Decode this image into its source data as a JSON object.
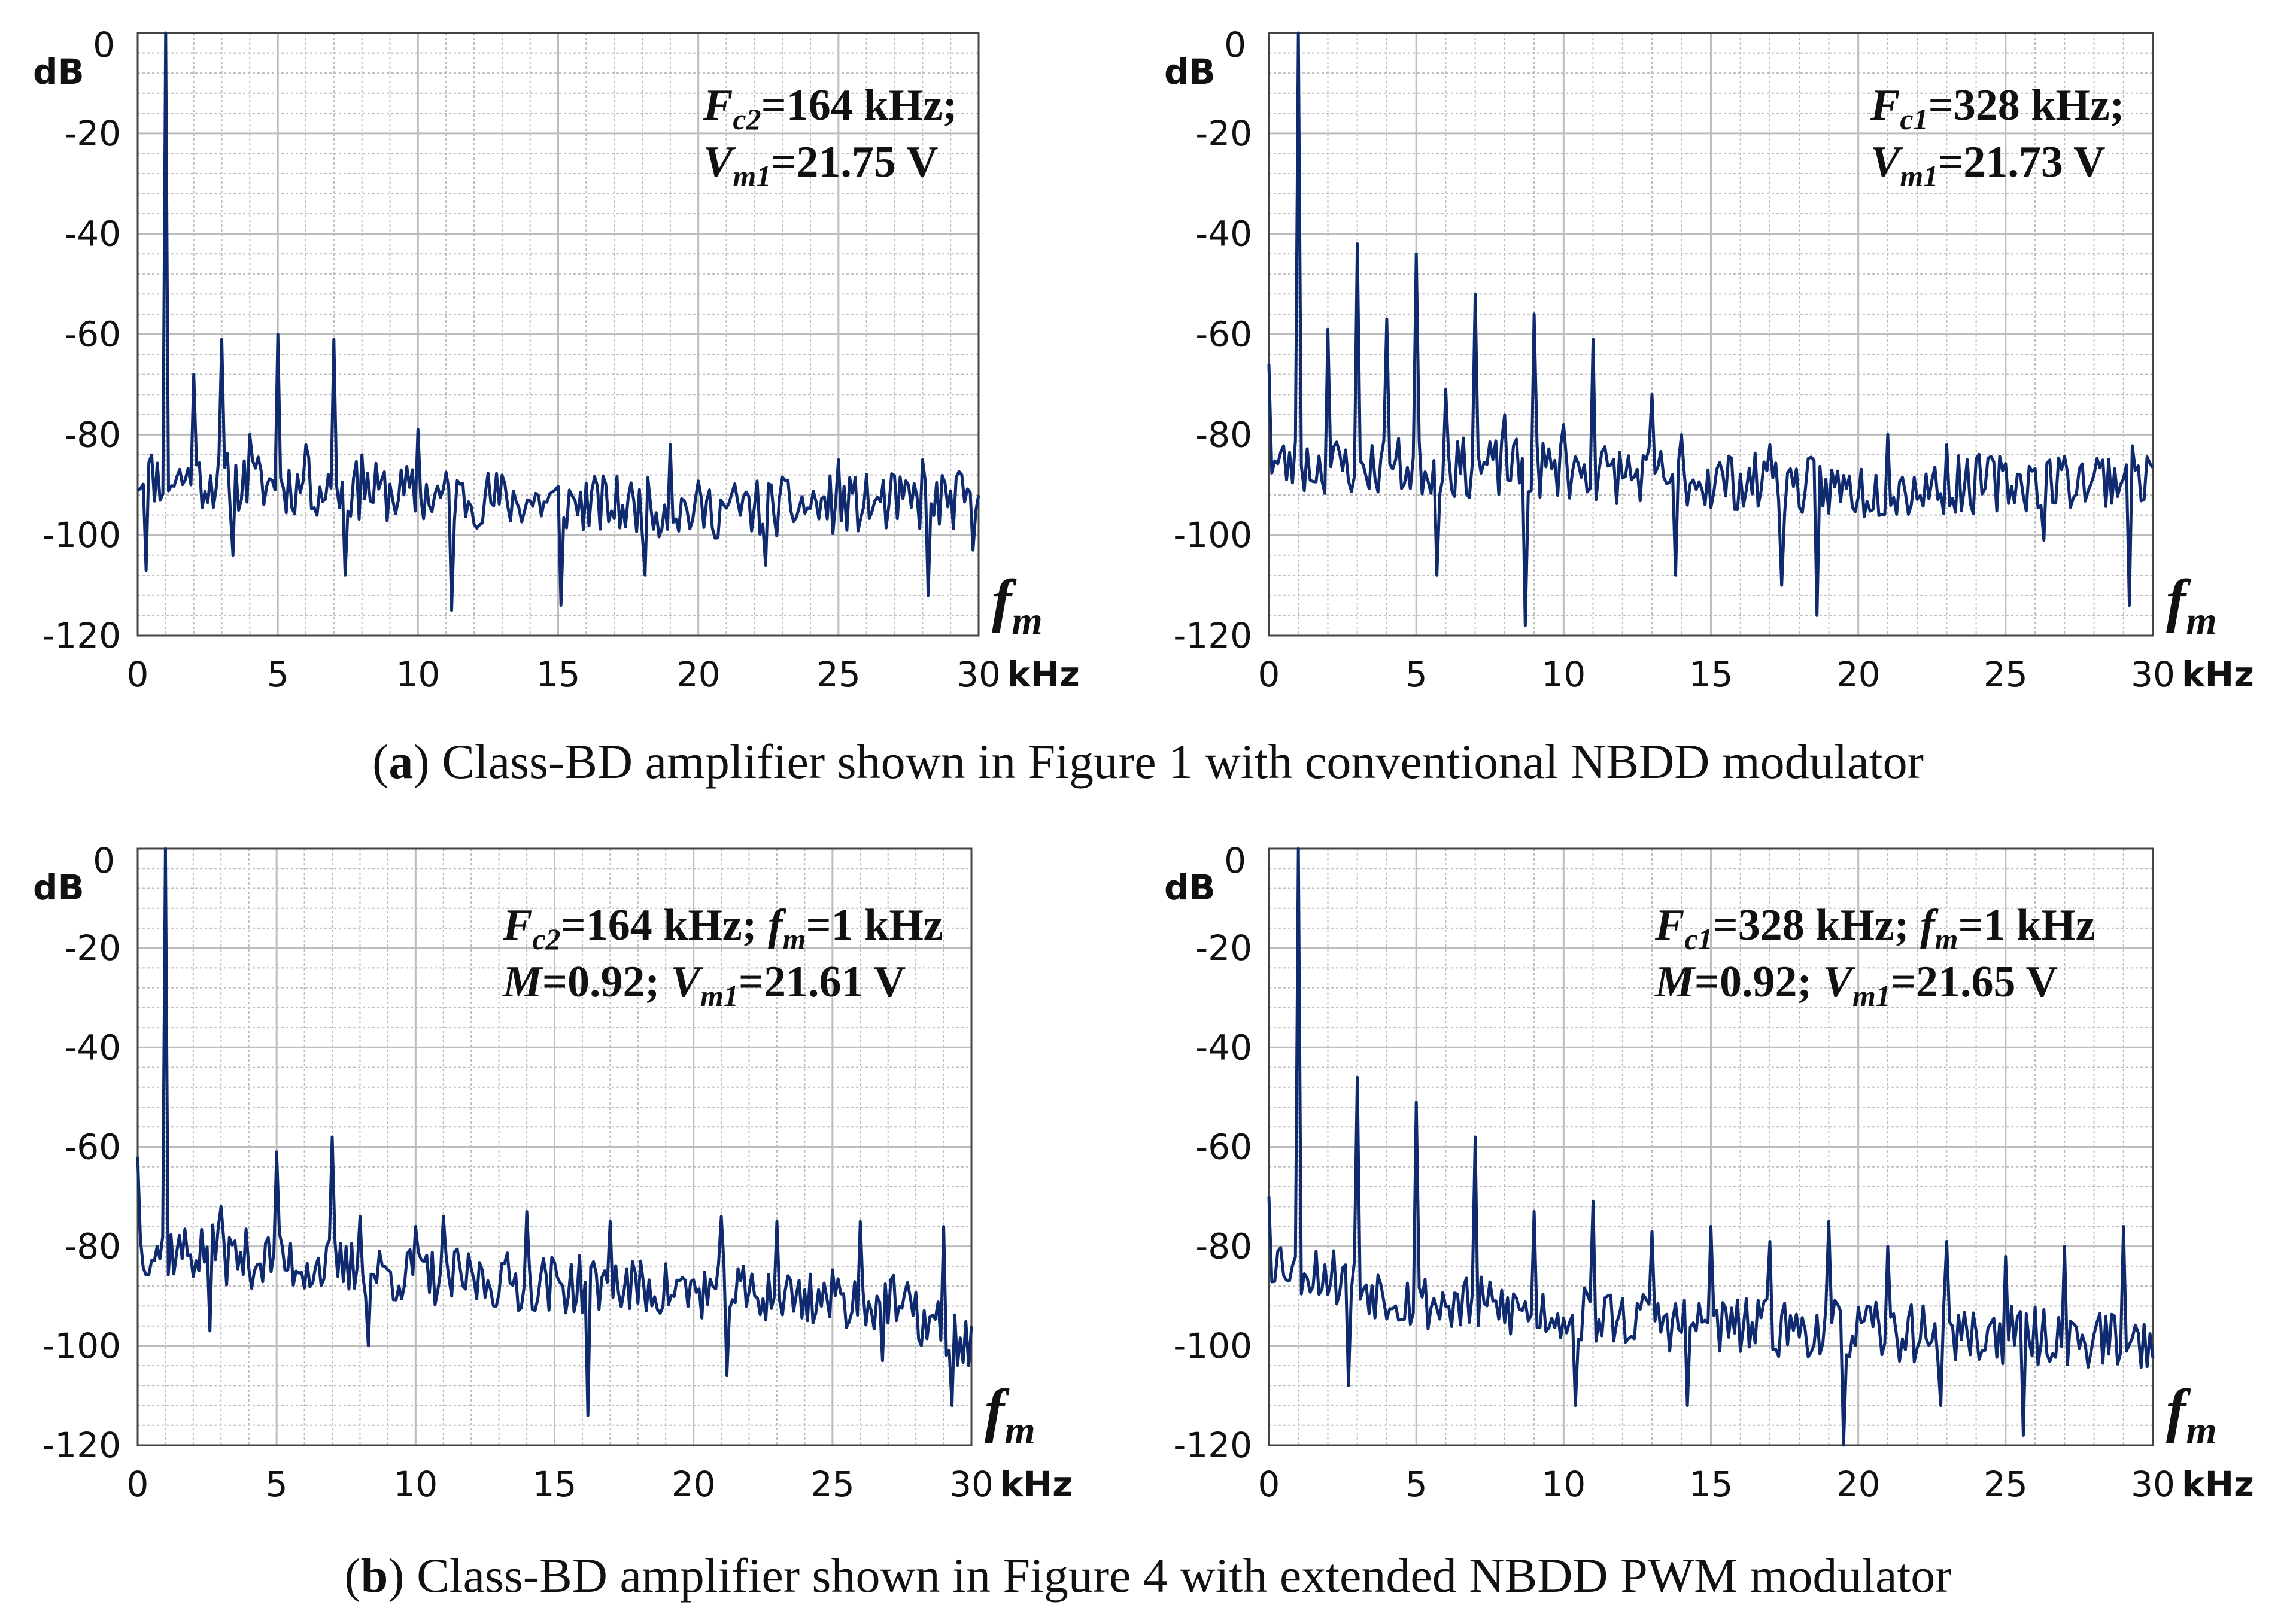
{
  "colors": {
    "trace": "#0f2a6e",
    "grid": "#bdbdbd",
    "frame": "#444444"
  },
  "chart_data": [
    {
      "id": "a-left",
      "type": "line",
      "xlabel": "kHz",
      "ylabel": "dB",
      "axis_variable": "f",
      "axis_variable_sub": "m",
      "xlim": [
        0,
        30
      ],
      "ylim": [
        -120,
        0
      ],
      "xticks": [
        "0",
        "5",
        "10",
        "15",
        "20",
        "25",
        "30"
      ],
      "yticks": [
        "0",
        "-20",
        "-40",
        "-60",
        "-80",
        "-100",
        "-120"
      ],
      "annotation": [
        [
          {
            "t": "F",
            "i": true
          },
          {
            "t": "c2",
            "i": true,
            "sub": true
          },
          {
            "t": "=164 kHz;",
            "i": false
          }
        ],
        [
          {
            "t": "V",
            "i": true
          },
          {
            "t": "m1",
            "i": true,
            "sub": true
          },
          {
            "t": "=21.75 V",
            "i": false
          }
        ]
      ],
      "peaks": [
        [
          1,
          0
        ],
        [
          2,
          -68
        ],
        [
          3,
          -61
        ],
        [
          4,
          -80
        ],
        [
          5,
          -60
        ],
        [
          6,
          -82
        ],
        [
          7,
          -61
        ],
        [
          8,
          -84
        ],
        [
          10,
          -79
        ],
        [
          19,
          -82
        ],
        [
          25,
          -85
        ],
        [
          28,
          -85
        ]
      ],
      "dips": [
        [
          0.3,
          -107
        ],
        [
          3.4,
          -104
        ],
        [
          7.4,
          -108
        ],
        [
          11.2,
          -115
        ],
        [
          15.1,
          -114
        ],
        [
          18.1,
          -108
        ],
        [
          22.4,
          -106
        ],
        [
          28.2,
          -112
        ],
        [
          29.8,
          -103
        ]
      ],
      "noise_base": [
        [
          0,
          -88
        ],
        [
          10,
          -92
        ],
        [
          20,
          -95
        ],
        [
          30,
          -93
        ]
      ],
      "seed": 11
    },
    {
      "id": "a-right",
      "type": "line",
      "xlabel": "kHz",
      "ylabel": "dB",
      "axis_variable": "f",
      "axis_variable_sub": "m",
      "xlim": [
        0,
        30
      ],
      "ylim": [
        -120,
        0
      ],
      "xticks": [
        "0",
        "5",
        "10",
        "15",
        "20",
        "25",
        "30"
      ],
      "yticks": [
        "0",
        "-20",
        "-40",
        "-60",
        "-80",
        "-100",
        "-120"
      ],
      "annotation": [
        [
          {
            "t": "F",
            "i": true
          },
          {
            "t": "c1",
            "i": true,
            "sub": true
          },
          {
            "t": "=328 kHz;",
            "i": false
          }
        ],
        [
          {
            "t": "V",
            "i": true
          },
          {
            "t": "m1",
            "i": true,
            "sub": true
          },
          {
            "t": "=21.73 V",
            "i": false
          }
        ]
      ],
      "peaks": [
        [
          0,
          -66
        ],
        [
          1,
          0
        ],
        [
          2,
          -59
        ],
        [
          3,
          -42
        ],
        [
          4,
          -57
        ],
        [
          5,
          -44
        ],
        [
          6,
          -71
        ],
        [
          7,
          -52
        ],
        [
          8,
          -76
        ],
        [
          9,
          -56
        ],
        [
          10,
          -78
        ],
        [
          11,
          -61
        ],
        [
          13,
          -72
        ],
        [
          14,
          -80
        ],
        [
          17,
          -82
        ],
        [
          21,
          -80
        ],
        [
          23,
          -82
        ]
      ],
      "dips": [
        [
          5.7,
          -108
        ],
        [
          8.7,
          -118
        ],
        [
          13.8,
          -108
        ],
        [
          17.4,
          -110
        ],
        [
          18.6,
          -116
        ],
        [
          26.3,
          -101
        ],
        [
          29.2,
          -114
        ]
      ],
      "noise_base": [
        [
          0,
          -86
        ],
        [
          10,
          -87
        ],
        [
          20,
          -91
        ],
        [
          30,
          -88
        ]
      ],
      "seed": 23
    },
    {
      "id": "b-left",
      "type": "line",
      "xlabel": "kHz",
      "ylabel": "dB",
      "axis_variable": "f",
      "axis_variable_sub": "m",
      "xlim": [
        0,
        30
      ],
      "ylim": [
        -120,
        0
      ],
      "xticks": [
        "0",
        "5",
        "10",
        "15",
        "20",
        "25",
        "30"
      ],
      "yticks": [
        "0",
        "-20",
        "-40",
        "-60",
        "-80",
        "-100",
        "-120"
      ],
      "annotation": [
        [
          {
            "t": "F",
            "i": true
          },
          {
            "t": "c2",
            "i": true,
            "sub": true
          },
          {
            "t": "=164 kHz; ",
            "i": false
          },
          {
            "t": "f",
            "i": true
          },
          {
            "t": "m",
            "i": true,
            "sub": true
          },
          {
            "t": "=1 kHz",
            "i": false
          }
        ],
        [
          {
            "t": "M",
            "i": true
          },
          {
            "t": "=0.92;  ",
            "i": false
          },
          {
            "t": "V",
            "i": true
          },
          {
            "t": "m1",
            "i": true,
            "sub": true
          },
          {
            "t": "=21.61 V",
            "i": false
          }
        ]
      ],
      "peaks": [
        [
          0,
          -62
        ],
        [
          1,
          0
        ],
        [
          3,
          -72
        ],
        [
          5,
          -61
        ],
        [
          7,
          -58
        ],
        [
          8,
          -74
        ],
        [
          10,
          -76
        ],
        [
          11,
          -74
        ],
        [
          14,
          -73
        ],
        [
          17,
          -75
        ],
        [
          21,
          -74
        ],
        [
          23,
          -75
        ],
        [
          26,
          -75
        ],
        [
          29,
          -76
        ]
      ],
      "dips": [
        [
          2.6,
          -97
        ],
        [
          8.3,
          -100
        ],
        [
          16.2,
          -114
        ],
        [
          21.2,
          -106
        ],
        [
          26.8,
          -103
        ],
        [
          29.3,
          -112
        ],
        [
          29.9,
          -104
        ]
      ],
      "noise_base": [
        [
          0,
          -80
        ],
        [
          10,
          -86
        ],
        [
          20,
          -89
        ],
        [
          27,
          -91
        ],
        [
          30,
          -100
        ]
      ],
      "seed": 37
    },
    {
      "id": "b-right",
      "type": "line",
      "xlabel": "kHz",
      "ylabel": "dB",
      "axis_variable": "f",
      "axis_variable_sub": "m",
      "xlim": [
        0,
        30
      ],
      "ylim": [
        -120,
        0
      ],
      "xticks": [
        "0",
        "5",
        "10",
        "15",
        "20",
        "25",
        "30"
      ],
      "yticks": [
        "0",
        "-20",
        "-40",
        "-60",
        "-80",
        "-100",
        "-120"
      ],
      "annotation": [
        [
          {
            "t": "F",
            "i": true
          },
          {
            "t": "c1",
            "i": true,
            "sub": true
          },
          {
            "t": "=328 kHz; ",
            "i": false
          },
          {
            "t": "f",
            "i": true
          },
          {
            "t": "m",
            "i": true,
            "sub": true
          },
          {
            "t": "=1 kHz",
            "i": false
          }
        ],
        [
          {
            "t": "M",
            "i": true
          },
          {
            "t": "=0.92;  ",
            "i": false
          },
          {
            "t": "V",
            "i": true
          },
          {
            "t": "m1",
            "i": true,
            "sub": true
          },
          {
            "t": "=21.65 V",
            "i": false
          }
        ]
      ],
      "peaks": [
        [
          0,
          -70
        ],
        [
          1,
          0
        ],
        [
          3,
          -46
        ],
        [
          5,
          -51
        ],
        [
          7,
          -58
        ],
        [
          9,
          -73
        ],
        [
          11,
          -71
        ],
        [
          13,
          -77
        ],
        [
          15,
          -76
        ],
        [
          17,
          -79
        ],
        [
          19,
          -75
        ],
        [
          21,
          -80
        ],
        [
          23,
          -79
        ],
        [
          25,
          -82
        ],
        [
          27,
          -80
        ],
        [
          29,
          -76
        ]
      ],
      "dips": [
        [
          2.7,
          -108
        ],
        [
          10.4,
          -112
        ],
        [
          14.2,
          -112
        ],
        [
          19.5,
          -120
        ],
        [
          22.8,
          -112
        ],
        [
          25.6,
          -118
        ]
      ],
      "noise_base": [
        [
          0,
          -82
        ],
        [
          5,
          -91
        ],
        [
          15,
          -96
        ],
        [
          30,
          -99
        ]
      ],
      "seed": 53
    }
  ],
  "captions": {
    "a": {
      "label": "a",
      "text": ") Class-BD amplifier shown in Figure 1 with conventional NBDD modulator"
    },
    "b": {
      "label": "b",
      "text": ") Class-BD amplifier shown in Figure 4 with extended NBDD PWM modulator"
    }
  }
}
